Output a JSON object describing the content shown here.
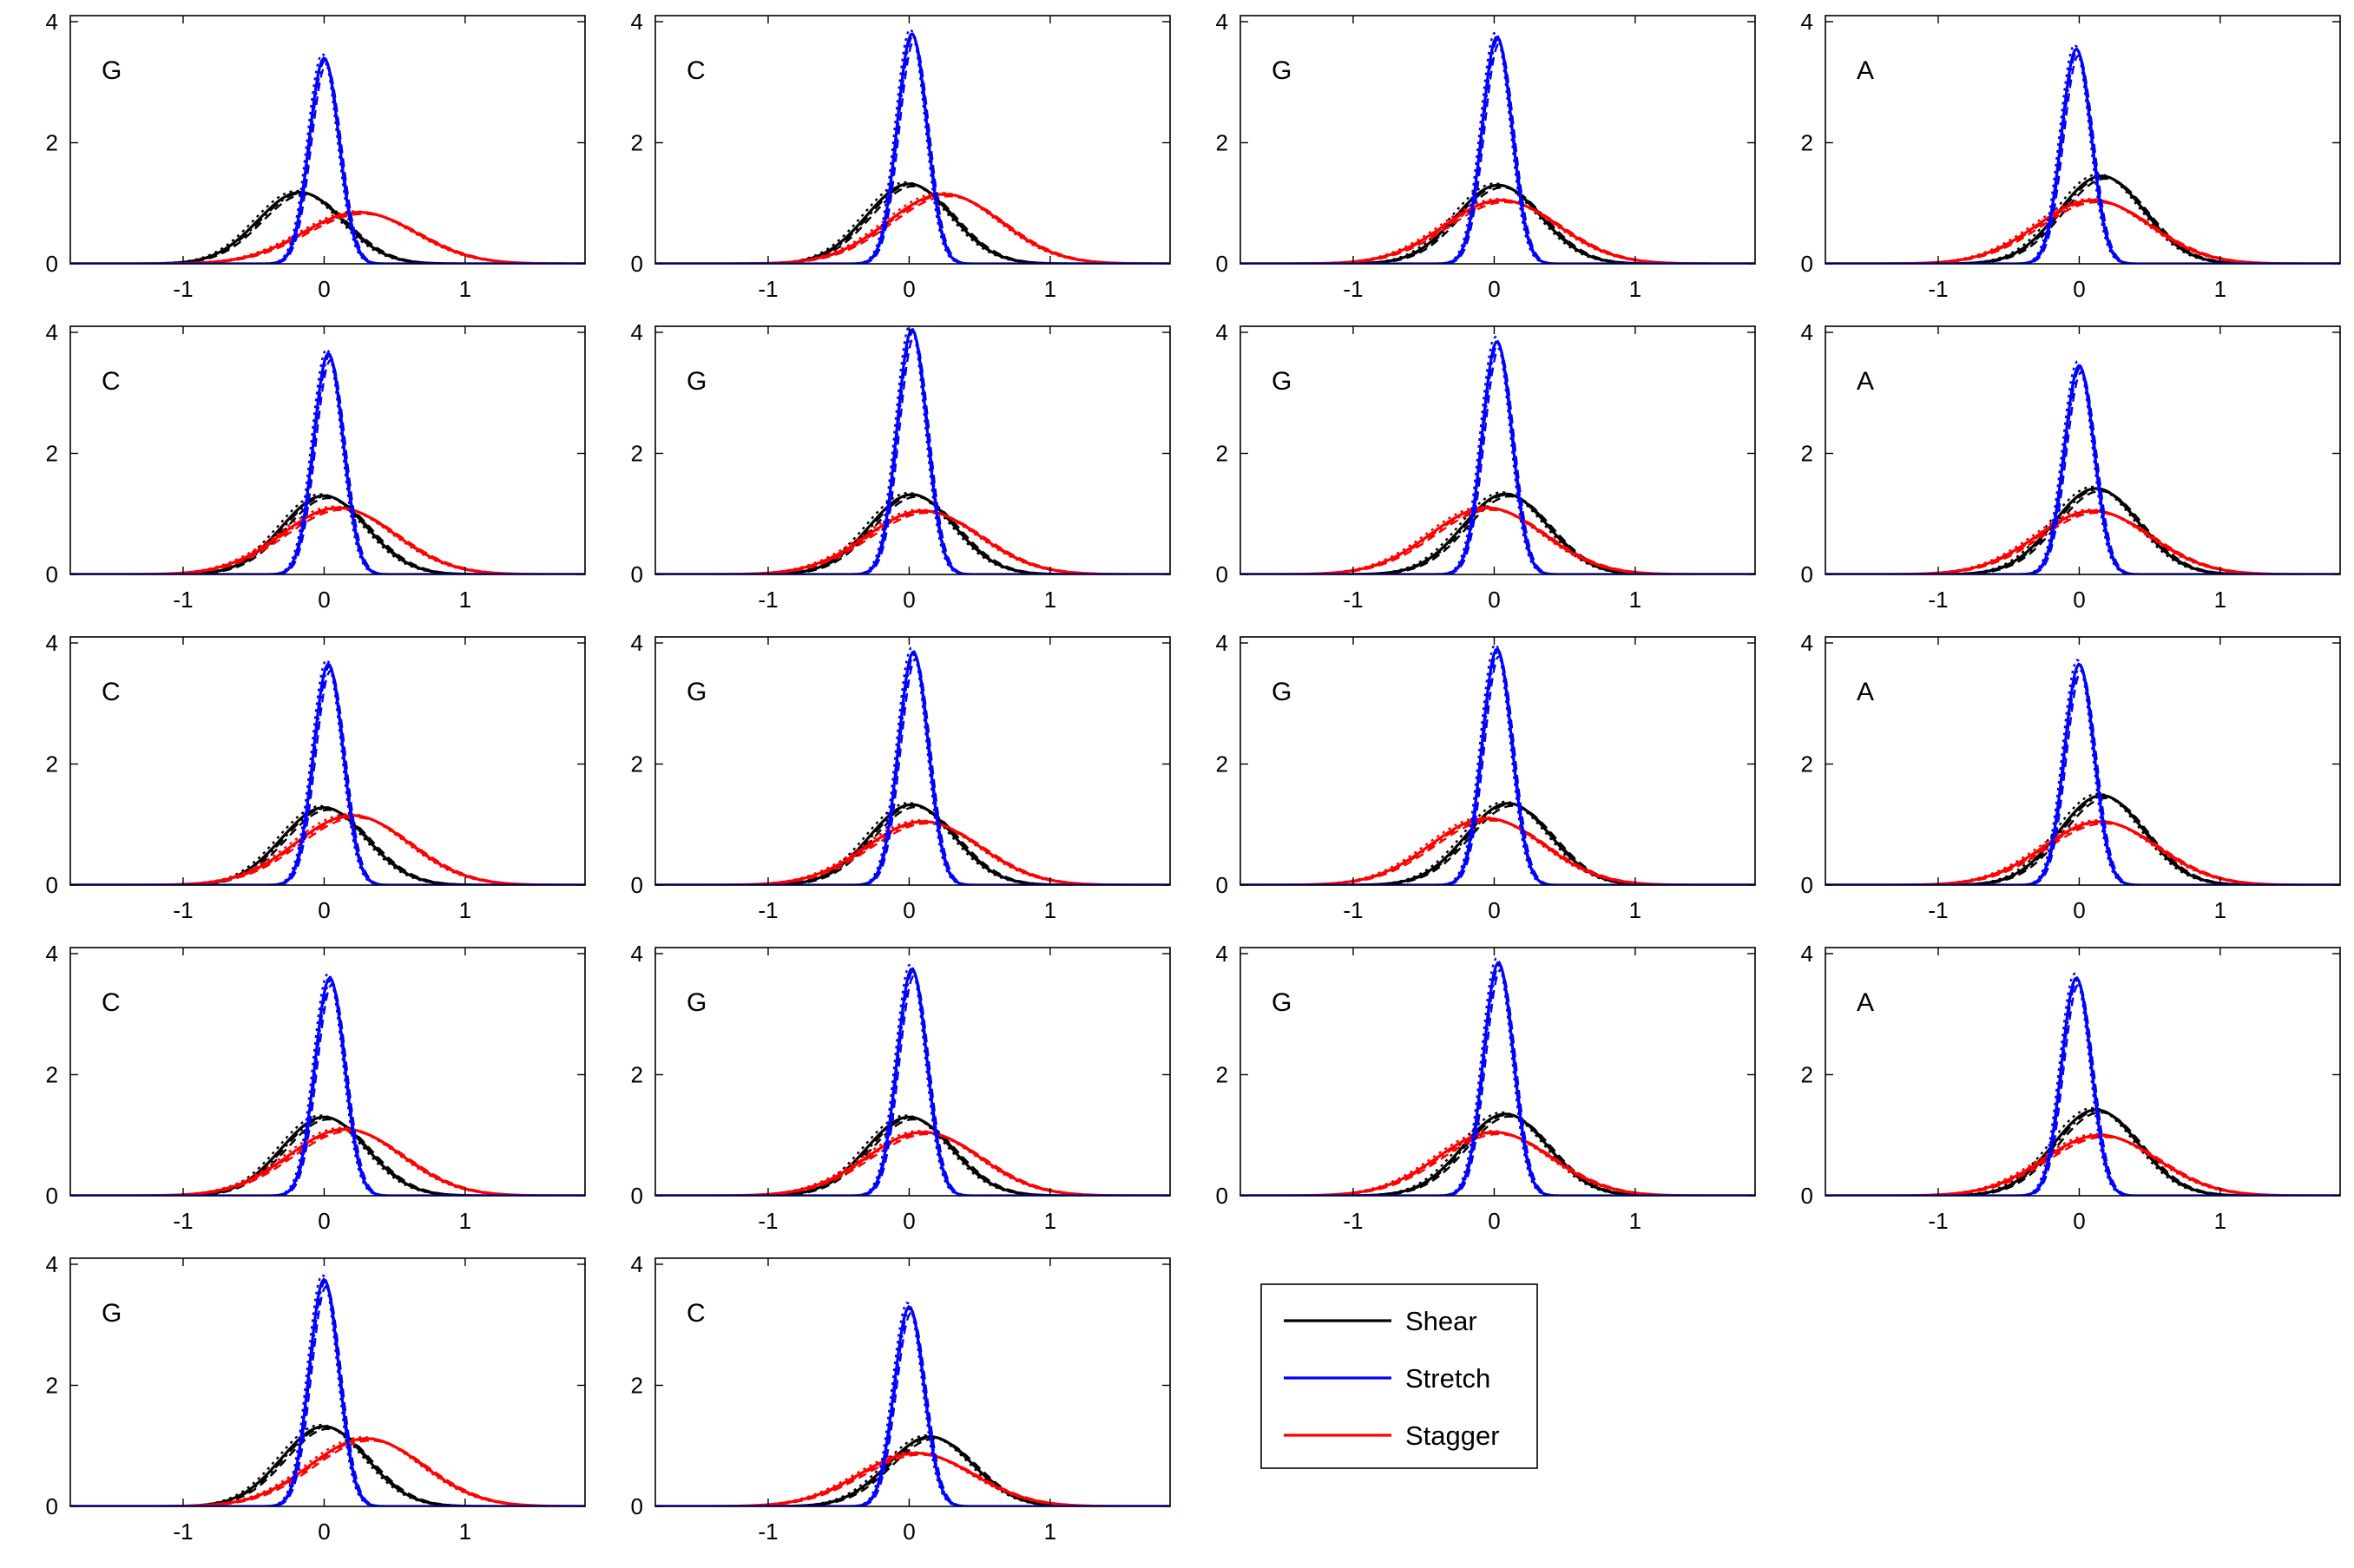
{
  "chart_data": {
    "type": "line",
    "xlim": [
      -1.8,
      1.85
    ],
    "ylim": [
      0,
      4.1
    ],
    "xticks": [
      -1,
      0,
      1
    ],
    "yticks": [
      0,
      2,
      4
    ],
    "grid": false,
    "legend": {
      "placement": "bottom-right",
      "entries": [
        {
          "name": "Shear",
          "color": "#000000"
        },
        {
          "name": "Stretch",
          "color": "#0000ff"
        },
        {
          "name": "Stagger",
          "color": "#ff0000"
        }
      ]
    },
    "colors": {
      "shear": "#000000",
      "stretch": "#0000ff",
      "stagger": "#ff0000"
    },
    "panels": [
      {
        "label": "G",
        "shear": {
          "mu": -0.17,
          "peak": 1.18
        },
        "stretch": {
          "mu": 0.0,
          "peak": 3.4
        },
        "stagger": {
          "mu": 0.25,
          "peak": 0.85
        }
      },
      {
        "label": "C",
        "shear": {
          "mu": 0.0,
          "peak": 1.32
        },
        "stretch": {
          "mu": 0.02,
          "peak": 3.8
        },
        "stagger": {
          "mu": 0.25,
          "peak": 1.15
        }
      },
      {
        "label": "G",
        "shear": {
          "mu": 0.03,
          "peak": 1.3
        },
        "stretch": {
          "mu": 0.02,
          "peak": 3.75
        },
        "stagger": {
          "mu": 0.05,
          "peak": 1.05
        }
      },
      {
        "label": "A",
        "shear": {
          "mu": 0.16,
          "peak": 1.45
        },
        "stretch": {
          "mu": -0.02,
          "peak": 3.55
        },
        "stagger": {
          "mu": 0.1,
          "peak": 1.05
        }
      },
      {
        "label": "C",
        "shear": {
          "mu": 0.0,
          "peak": 1.3
        },
        "stretch": {
          "mu": 0.03,
          "peak": 3.65
        },
        "stagger": {
          "mu": 0.1,
          "peak": 1.1
        }
      },
      {
        "label": "G",
        "shear": {
          "mu": 0.02,
          "peak": 1.32
        },
        "stretch": {
          "mu": 0.02,
          "peak": 4.05
        },
        "stagger": {
          "mu": 0.1,
          "peak": 1.05
        }
      },
      {
        "label": "G",
        "shear": {
          "mu": 0.08,
          "peak": 1.33
        },
        "stretch": {
          "mu": 0.02,
          "peak": 3.85
        },
        "stagger": {
          "mu": -0.05,
          "peak": 1.1
        }
      },
      {
        "label": "A",
        "shear": {
          "mu": 0.12,
          "peak": 1.42
        },
        "stretch": {
          "mu": 0.0,
          "peak": 3.45
        },
        "stagger": {
          "mu": 0.1,
          "peak": 1.05
        }
      },
      {
        "label": "C",
        "shear": {
          "mu": 0.0,
          "peak": 1.28
        },
        "stretch": {
          "mu": 0.03,
          "peak": 3.65
        },
        "stagger": {
          "mu": 0.2,
          "peak": 1.15
        }
      },
      {
        "label": "G",
        "shear": {
          "mu": 0.02,
          "peak": 1.33
        },
        "stretch": {
          "mu": 0.03,
          "peak": 3.85
        },
        "stagger": {
          "mu": 0.1,
          "peak": 1.05
        }
      },
      {
        "label": "G",
        "shear": {
          "mu": 0.1,
          "peak": 1.35
        },
        "stretch": {
          "mu": 0.02,
          "peak": 3.9
        },
        "stagger": {
          "mu": -0.05,
          "peak": 1.1
        }
      },
      {
        "label": "A",
        "shear": {
          "mu": 0.16,
          "peak": 1.48
        },
        "stretch": {
          "mu": 0.0,
          "peak": 3.65
        },
        "stagger": {
          "mu": 0.15,
          "peak": 1.05
        }
      },
      {
        "label": "C",
        "shear": {
          "mu": 0.0,
          "peak": 1.3
        },
        "stretch": {
          "mu": 0.04,
          "peak": 3.6
        },
        "stagger": {
          "mu": 0.15,
          "peak": 1.1
        }
      },
      {
        "label": "G",
        "shear": {
          "mu": 0.0,
          "peak": 1.3
        },
        "stretch": {
          "mu": 0.02,
          "peak": 3.75
        },
        "stagger": {
          "mu": 0.1,
          "peak": 1.05
        }
      },
      {
        "label": "G",
        "shear": {
          "mu": 0.08,
          "peak": 1.35
        },
        "stretch": {
          "mu": 0.03,
          "peak": 3.85
        },
        "stagger": {
          "mu": 0.0,
          "peak": 1.05
        }
      },
      {
        "label": "A",
        "shear": {
          "mu": 0.12,
          "peak": 1.42
        },
        "stretch": {
          "mu": -0.02,
          "peak": 3.6
        },
        "stagger": {
          "mu": 0.15,
          "peak": 1.0
        }
      },
      {
        "label": "G",
        "shear": {
          "mu": 0.0,
          "peak": 1.32
        },
        "stretch": {
          "mu": 0.0,
          "peak": 3.75
        },
        "stagger": {
          "mu": 0.3,
          "peak": 1.12
        }
      },
      {
        "label": "C",
        "shear": {
          "mu": 0.15,
          "peak": 1.15
        },
        "stretch": {
          "mu": 0.0,
          "peak": 3.3
        },
        "stagger": {
          "mu": 0.05,
          "peak": 0.88
        }
      }
    ]
  }
}
